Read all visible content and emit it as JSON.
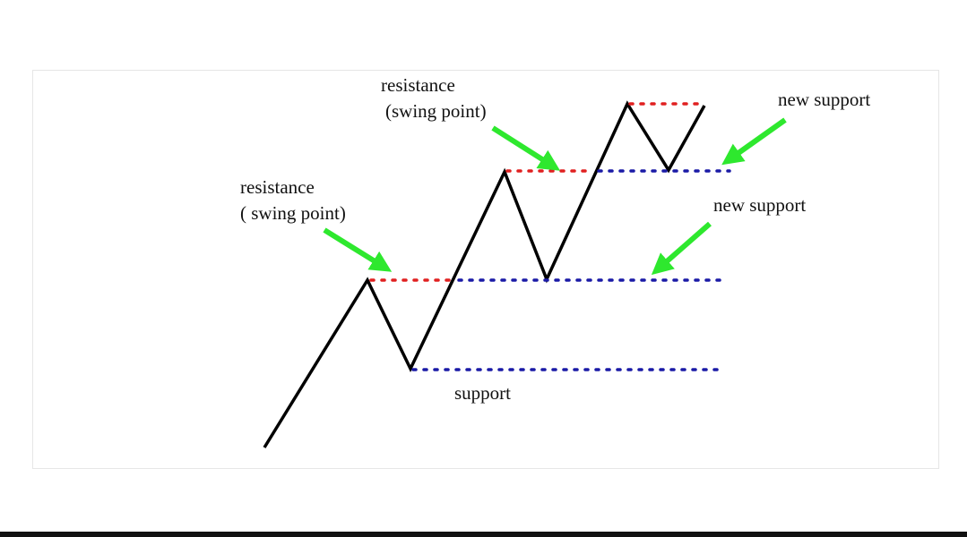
{
  "labels": {
    "resistance_1_line1": "resistance",
    "resistance_1_line2": "( swing point)",
    "resistance_2_line1": "resistance",
    "resistance_2_line2": "(swing point)",
    "support": "support",
    "new_support_1": "new support",
    "new_support_2": "new support"
  },
  "colors": {
    "price_line": "#000000",
    "resistance_dots": "#e02020",
    "support_dots": "#1a1aa6",
    "arrows": "#2ee82e"
  }
}
